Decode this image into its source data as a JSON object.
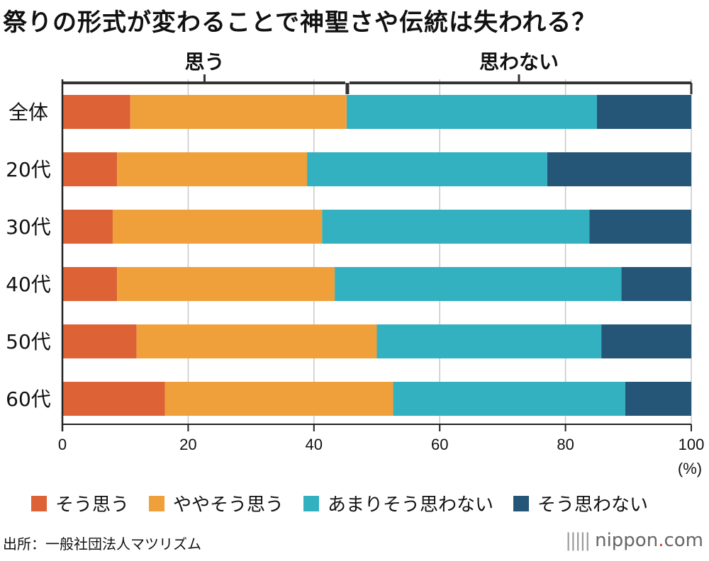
{
  "title": "祭りの形式が変わることで神聖さや伝統は失われる？",
  "chart_data": {
    "type": "bar",
    "orientation": "horizontal",
    "stacked": true,
    "categories": [
      "全体",
      "20代",
      "30代",
      "40代",
      "50代",
      "60代"
    ],
    "series": [
      {
        "name": "そう思う",
        "color": "#dd6236",
        "values": [
          10.8,
          8.7,
          8.0,
          8.7,
          11.8,
          16.3
        ]
      },
      {
        "name": "ややそう思う",
        "color": "#f0a03a",
        "values": [
          34.4,
          30.2,
          33.3,
          34.6,
          38.2,
          36.3
        ]
      },
      {
        "name": "あまりそう思わない",
        "color": "#33b1c0",
        "values": [
          39.8,
          38.2,
          42.5,
          45.6,
          35.7,
          36.9
        ]
      },
      {
        "name": "そう思わない",
        "color": "#255577",
        "values": [
          15.0,
          22.9,
          16.2,
          11.1,
          14.3,
          10.5
        ]
      }
    ],
    "xlim": [
      0,
      100
    ],
    "xticks": [
      "0",
      "20",
      "40",
      "60",
      "80",
      "100"
    ],
    "xunit": "(%)",
    "bracket_left": "思う",
    "bracket_right": "思わない",
    "bracket_split": 45.2,
    "grid": true
  },
  "source": "出所：一般社団法人マツリズム",
  "brand": {
    "main": "nippon",
    "dot": ".",
    "suffix": "com"
  }
}
